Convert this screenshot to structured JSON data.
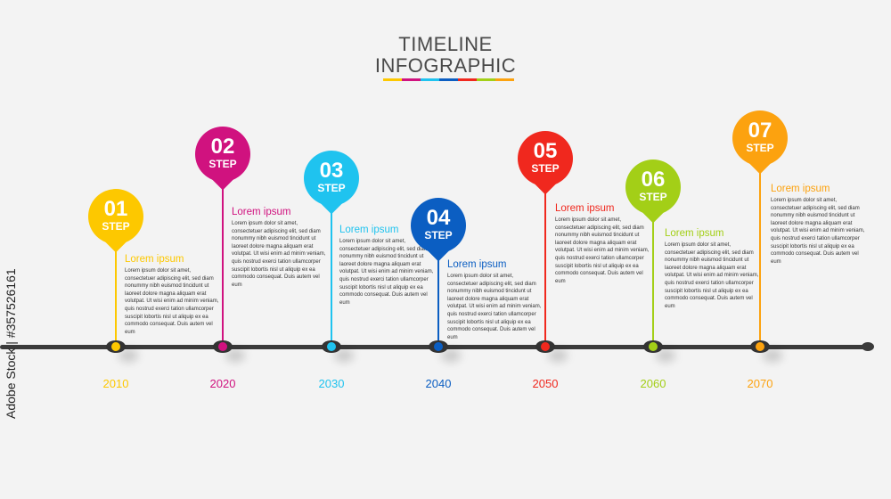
{
  "title": {
    "line1": "TIMELINE",
    "line2": "INFOGRAPHIC"
  },
  "palette": [
    "#fdc800",
    "#d0127f",
    "#1fc3ef",
    "#0b5ec2",
    "#f0281e",
    "#a3cf17",
    "#fca20f"
  ],
  "steps": [
    {
      "number": "01",
      "step": "STEP",
      "heading": "Lorem ipsum",
      "year": "2010",
      "color": "#fdc800",
      "body": "Lorem ipsum dolor sit amet, consectetuer adipiscing elit, sed diam nonummy nibh euismod tincidunt ut laoreet dolore magna aliquam erat volutpat. Ut wisi enim ad minim veniam, quis nostrud exerci tation ullamcorper suscipit lobortis nisl ut aliquip ex ea commodo consequat. Duis autem vel eum"
    },
    {
      "number": "02",
      "step": "STEP",
      "heading": "Lorem ipsum",
      "year": "2020",
      "color": "#d0127f",
      "body": "Lorem ipsum dolor sit amet, consectetuer adipiscing elit, sed diam nonummy nibh euismod tincidunt ut laoreet dolore magna aliquam erat volutpat. Ut wisi enim ad minim veniam, quis nostrud exerci tation ullamcorper suscipit lobortis nisl ut aliquip ex ea commodo consequat. Duis autem vel eum"
    },
    {
      "number": "03",
      "step": "STEP",
      "heading": "Lorem ipsum",
      "year": "2030",
      "color": "#1fc3ef",
      "body": "Lorem ipsum dolor sit amet, consectetuer adipiscing elit, sed diam nonummy nibh euismod tincidunt ut laoreet dolore magna aliquam erat volutpat. Ut wisi enim ad minim veniam, quis nostrud exerci tation ullamcorper suscipit lobortis nisl ut aliquip ex ea commodo consequat. Duis autem vel eum"
    },
    {
      "number": "04",
      "step": "STEP",
      "heading": "Lorem ipsum",
      "year": "2040",
      "color": "#0b5ec2",
      "body": "Lorem ipsum dolor sit amet, consectetuer adipiscing elit, sed diam nonummy nibh euismod tincidunt ut laoreet dolore magna aliquam erat volutpat. Ut wisi enim ad minim veniam, quis nostrud exerci tation ullamcorper suscipit lobortis nisl ut aliquip ex ea commodo consequat. Duis autem vel eum"
    },
    {
      "number": "05",
      "step": "STEP",
      "heading": "Lorem ipsum",
      "year": "2050",
      "color": "#f0281e",
      "body": "Lorem ipsum dolor sit amet, consectetuer adipiscing elit, sed diam nonummy nibh euismod tincidunt ut laoreet dolore magna aliquam erat volutpat. Ut wisi enim ad minim veniam, quis nostrud exerci tation ullamcorper suscipit lobortis nisl ut aliquip ex ea commodo consequat. Duis autem vel eum"
    },
    {
      "number": "06",
      "step": "STEP",
      "heading": "Lorem ipsum",
      "year": "2060",
      "color": "#a3cf17",
      "body": "Lorem ipsum dolor sit amet, consectetuer adipiscing elit, sed diam nonummy nibh euismod tincidunt ut laoreet dolore magna aliquam erat volutpat. Ut wisi enim ad minim veniam, quis nostrud exerci tation ullamcorper suscipit lobortis nisl ut aliquip ex ea commodo consequat. Duis autem vel eum"
    },
    {
      "number": "07",
      "step": "STEP",
      "heading": "Lorem ipsum",
      "year": "2070",
      "color": "#fca20f",
      "body": "Lorem ipsum dolor sit amet, consectetuer adipiscing elit, sed diam nonummy nibh euismod tincidunt ut laoreet dolore magna aliquam erat volutpat. Ut wisi enim ad minim veniam, quis nostrud exerci tation ullamcorper suscipit lobortis nisl ut aliquip ex ea commodo consequat. Duis autem vel eum"
    }
  ],
  "watermark": "Adobe Stock | #357526161"
}
